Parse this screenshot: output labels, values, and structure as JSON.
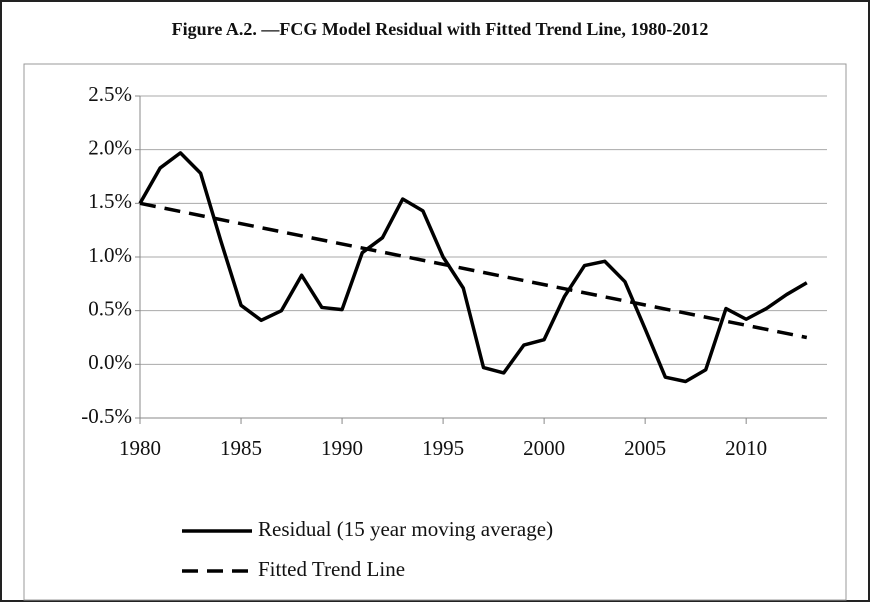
{
  "chart_data": {
    "type": "line",
    "title": "Figure A.2. —FCG Model Residual with Fitted Trend Line, 1980-2012",
    "xlim": [
      1980,
      2014
    ],
    "xticks": [
      1980,
      1985,
      1990,
      1995,
      2000,
      2005,
      2010
    ],
    "ylim": [
      -0.5,
      2.5
    ],
    "yticks": [
      {
        "value": -0.5,
        "label": "-0.5%"
      },
      {
        "value": 0,
        "label": "0.0%"
      },
      {
        "value": 0.5,
        "label": "0.5%"
      },
      {
        "value": 1,
        "label": "1.0%"
      },
      {
        "value": 1.5,
        "label": "1.5%"
      },
      {
        "value": 2,
        "label": "2.0%"
      },
      {
        "value": 2.5,
        "label": "2.5%"
      }
    ],
    "grid": true,
    "legend": "bottom",
    "series": [
      {
        "name": "Residual (15 year moving average)",
        "color": "#000000",
        "dash": false,
        "x": [
          1980,
          1981,
          1982,
          1983,
          1984,
          1985,
          1986,
          1987,
          1988,
          1989,
          1990,
          1991,
          1992,
          1993,
          1994,
          1995,
          1996,
          1997,
          1998,
          1999,
          2000,
          2001,
          2002,
          2003,
          2004,
          2005,
          2006,
          2007,
          2008,
          2009,
          2010,
          2011,
          2012,
          2013
        ],
        "values": [
          1.5,
          1.83,
          1.97,
          1.78,
          1.15,
          0.55,
          0.41,
          0.5,
          0.83,
          0.53,
          0.51,
          1.04,
          1.18,
          1.54,
          1.43,
          1.0,
          0.71,
          -0.03,
          -0.08,
          0.18,
          0.23,
          0.63,
          0.92,
          0.96,
          0.77,
          0.33,
          -0.12,
          -0.16,
          -0.05,
          0.52,
          0.42,
          0.52,
          0.65,
          0.76
        ]
      },
      {
        "name": "Fitted Trend Line",
        "color": "#000000",
        "dash": true,
        "x": [
          1980,
          2013
        ],
        "values": [
          1.5,
          0.25
        ]
      }
    ]
  }
}
